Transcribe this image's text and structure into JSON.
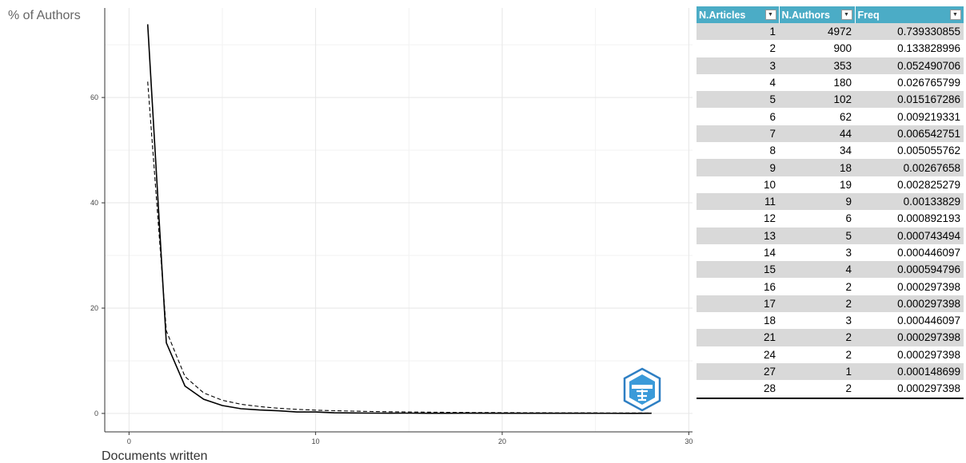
{
  "chart_data": {
    "type": "line",
    "xlabel": "Documents written",
    "ylabel": "% of Authors",
    "xlim": [
      -1.3,
      30.2
    ],
    "ylim": [
      -3.5,
      77
    ],
    "xticks": [
      0,
      10,
      20,
      30
    ],
    "yticks": [
      0,
      20,
      40,
      60
    ],
    "grid": true,
    "series": [
      {
        "style": "solid",
        "x": [
          1,
          2,
          3,
          4,
          5,
          6,
          7,
          8,
          9,
          10,
          11,
          12,
          13,
          14,
          15,
          16,
          17,
          18,
          21,
          24,
          27,
          28
        ],
        "y": [
          73.9,
          13.4,
          5.2,
          2.7,
          1.5,
          0.9,
          0.65,
          0.5,
          0.27,
          0.28,
          0.13,
          0.09,
          0.07,
          0.04,
          0.06,
          0.03,
          0.03,
          0.04,
          0.03,
          0.03,
          0.01,
          0.03
        ]
      },
      {
        "style": "dashed",
        "x": [
          1,
          2,
          3,
          4,
          5,
          6,
          7,
          8,
          9,
          10,
          11,
          12,
          13,
          14,
          15,
          16,
          17,
          18,
          21,
          24,
          27,
          28
        ],
        "y": [
          63,
          15.7,
          7.0,
          3.9,
          2.5,
          1.75,
          1.3,
          0.98,
          0.78,
          0.63,
          0.52,
          0.44,
          0.37,
          0.32,
          0.28,
          0.25,
          0.22,
          0.19,
          0.14,
          0.11,
          0.09,
          0.08
        ]
      }
    ]
  },
  "table": {
    "headers": [
      "N.Articles",
      "N.Authors",
      "Freq"
    ],
    "filter_icon": "dropdown-arrow-icon",
    "rows": [
      [
        "1",
        "4972",
        "0.739330855"
      ],
      [
        "2",
        "900",
        "0.133828996"
      ],
      [
        "3",
        "353",
        "0.052490706"
      ],
      [
        "4",
        "180",
        "0.026765799"
      ],
      [
        "5",
        "102",
        "0.015167286"
      ],
      [
        "6",
        "62",
        "0.009219331"
      ],
      [
        "7",
        "44",
        "0.006542751"
      ],
      [
        "8",
        "34",
        "0.005055762"
      ],
      [
        "9",
        "18",
        "0.00267658"
      ],
      [
        "10",
        "19",
        "0.002825279"
      ],
      [
        "11",
        "9",
        "0.00133829"
      ],
      [
        "12",
        "6",
        "0.000892193"
      ],
      [
        "13",
        "5",
        "0.000743494"
      ],
      [
        "14",
        "3",
        "0.000446097"
      ],
      [
        "15",
        "4",
        "0.000594796"
      ],
      [
        "16",
        "2",
        "0.000297398"
      ],
      [
        "17",
        "2",
        "0.000297398"
      ],
      [
        "18",
        "3",
        "0.000446097"
      ],
      [
        "21",
        "2",
        "0.000297398"
      ],
      [
        "24",
        "2",
        "0.000297398"
      ],
      [
        "27",
        "1",
        "0.000148699"
      ],
      [
        "28",
        "2",
        "0.000297398"
      ]
    ]
  },
  "colors": {
    "header_bg": "#4bacc6",
    "row_stripe": "#d9d9d9",
    "line": "#000000",
    "logo": "#2e7fc3"
  },
  "logo": {
    "icon": "logo-emblem-icon"
  }
}
